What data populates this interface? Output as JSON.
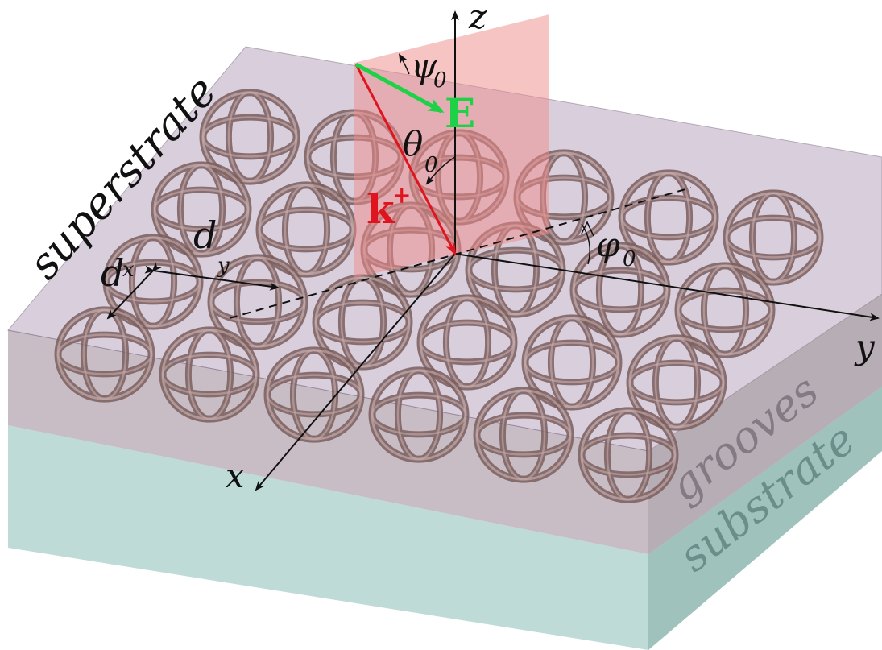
{
  "labels": {
    "superstrate": "superstrate",
    "substrate": "substrate",
    "grooves": "grooves",
    "axis_x": "x",
    "axis_y": "y",
    "axis_z": "z",
    "wave_vector_main": "k",
    "wave_vector_sup": "+",
    "field": "E",
    "theta": "θ",
    "theta_sub": "0",
    "phi": "φ",
    "phi_sub": "0",
    "psi": "ψ",
    "psi_sub": "0",
    "dx_main": "d",
    "dx_sub": "x",
    "dy_main": "d",
    "dy_sub": "y"
  },
  "colors": {
    "superstrate": "#b9a8c0",
    "grooves": "#9c8696",
    "substrate": "#a9cfc9",
    "plane_of_incidence": "#f08a8a",
    "wave_vector": "#e0141e",
    "field": "#1fd146",
    "spheres": "#9b7f7e",
    "axes": "#111111"
  },
  "lattice": {
    "rows": 4,
    "cols": 6
  }
}
